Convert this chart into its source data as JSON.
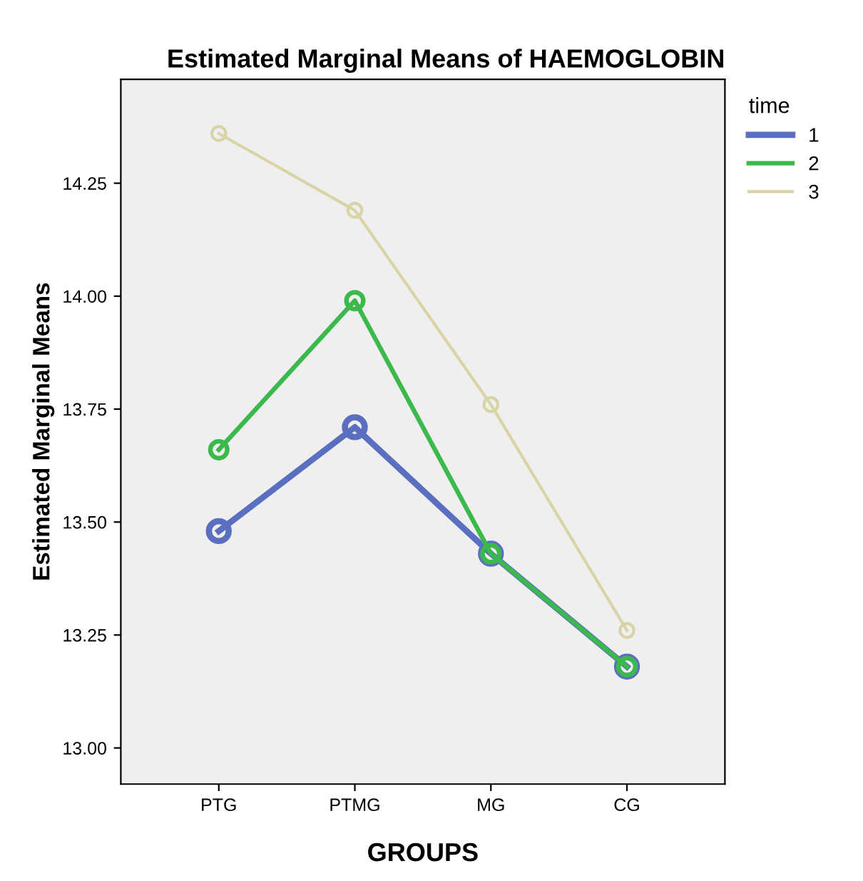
{
  "chart_data": {
    "type": "line",
    "title": "Estimated Marginal Means of HAEMOGLOBIN",
    "xlabel": "GROUPS",
    "ylabel": "Estimated Marginal Means",
    "legend_title": "time",
    "categories": [
      "PTG",
      "PTMG",
      "MG",
      "CG"
    ],
    "series": [
      {
        "name": "1",
        "color": "#5a6fc0",
        "values": [
          13.48,
          13.71,
          13.43,
          13.18
        ]
      },
      {
        "name": "2",
        "color": "#3cb94c",
        "values": [
          13.66,
          13.99,
          13.43,
          13.18
        ]
      },
      {
        "name": "3",
        "color": "#d8d4a5",
        "values": [
          14.36,
          14.19,
          13.76,
          13.26
        ]
      }
    ],
    "ylim": [
      12.92,
      14.48
    ],
    "yticks": [
      {
        "value": 13.0,
        "label": "13.00"
      },
      {
        "value": 13.25,
        "label": "13.25"
      },
      {
        "value": 13.5,
        "label": "13.50"
      },
      {
        "value": 13.75,
        "label": "13.75"
      },
      {
        "value": 14.0,
        "label": "14.00"
      },
      {
        "value": 14.25,
        "label": "14.25"
      }
    ],
    "grid": false,
    "legend": "right",
    "marker": "circle",
    "line_style": "solid"
  }
}
